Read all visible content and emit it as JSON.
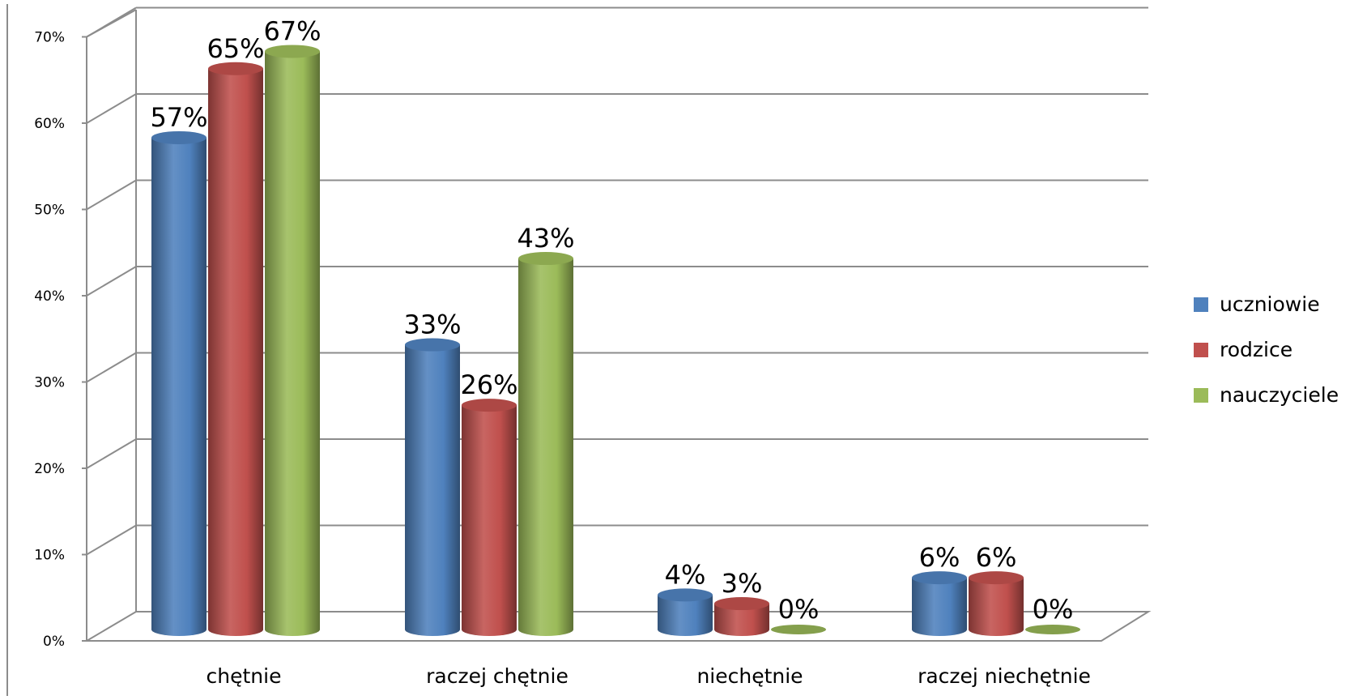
{
  "chart_data": {
    "type": "bar",
    "title": "",
    "xlabel": "",
    "ylabel": "",
    "categories": [
      "chętnie",
      "raczej chętnie",
      "niechętnie",
      "raczej niechętnie"
    ],
    "series": [
      {
        "name": "uczniowie",
        "color": "#4F81BD",
        "values": [
          57,
          33,
          4,
          6
        ]
      },
      {
        "name": "rodzice",
        "color": "#C0504D",
        "values": [
          65,
          26,
          3,
          6
        ]
      },
      {
        "name": "nauczyciele",
        "color": "#9BBB59",
        "values": [
          67,
          43,
          0,
          0
        ]
      }
    ],
    "data_labels": [
      [
        "57%",
        "33%",
        "4%",
        "6%"
      ],
      [
        "65%",
        "26%",
        "3%",
        "6%"
      ],
      [
        "67%",
        "43%",
        "0%",
        "0%"
      ]
    ],
    "visible_series_per_category": [
      3,
      3,
      3,
      3
    ],
    "ylim": [
      0,
      70
    ],
    "yticks": [
      0,
      10,
      20,
      30,
      40,
      50,
      60,
      70
    ],
    "ytick_labels": [
      "0%",
      "10%",
      "20%",
      "30%",
      "40%",
      "50%",
      "60%",
      "70%"
    ],
    "grid": true,
    "legend": "right",
    "style": "3d-cylinder"
  }
}
